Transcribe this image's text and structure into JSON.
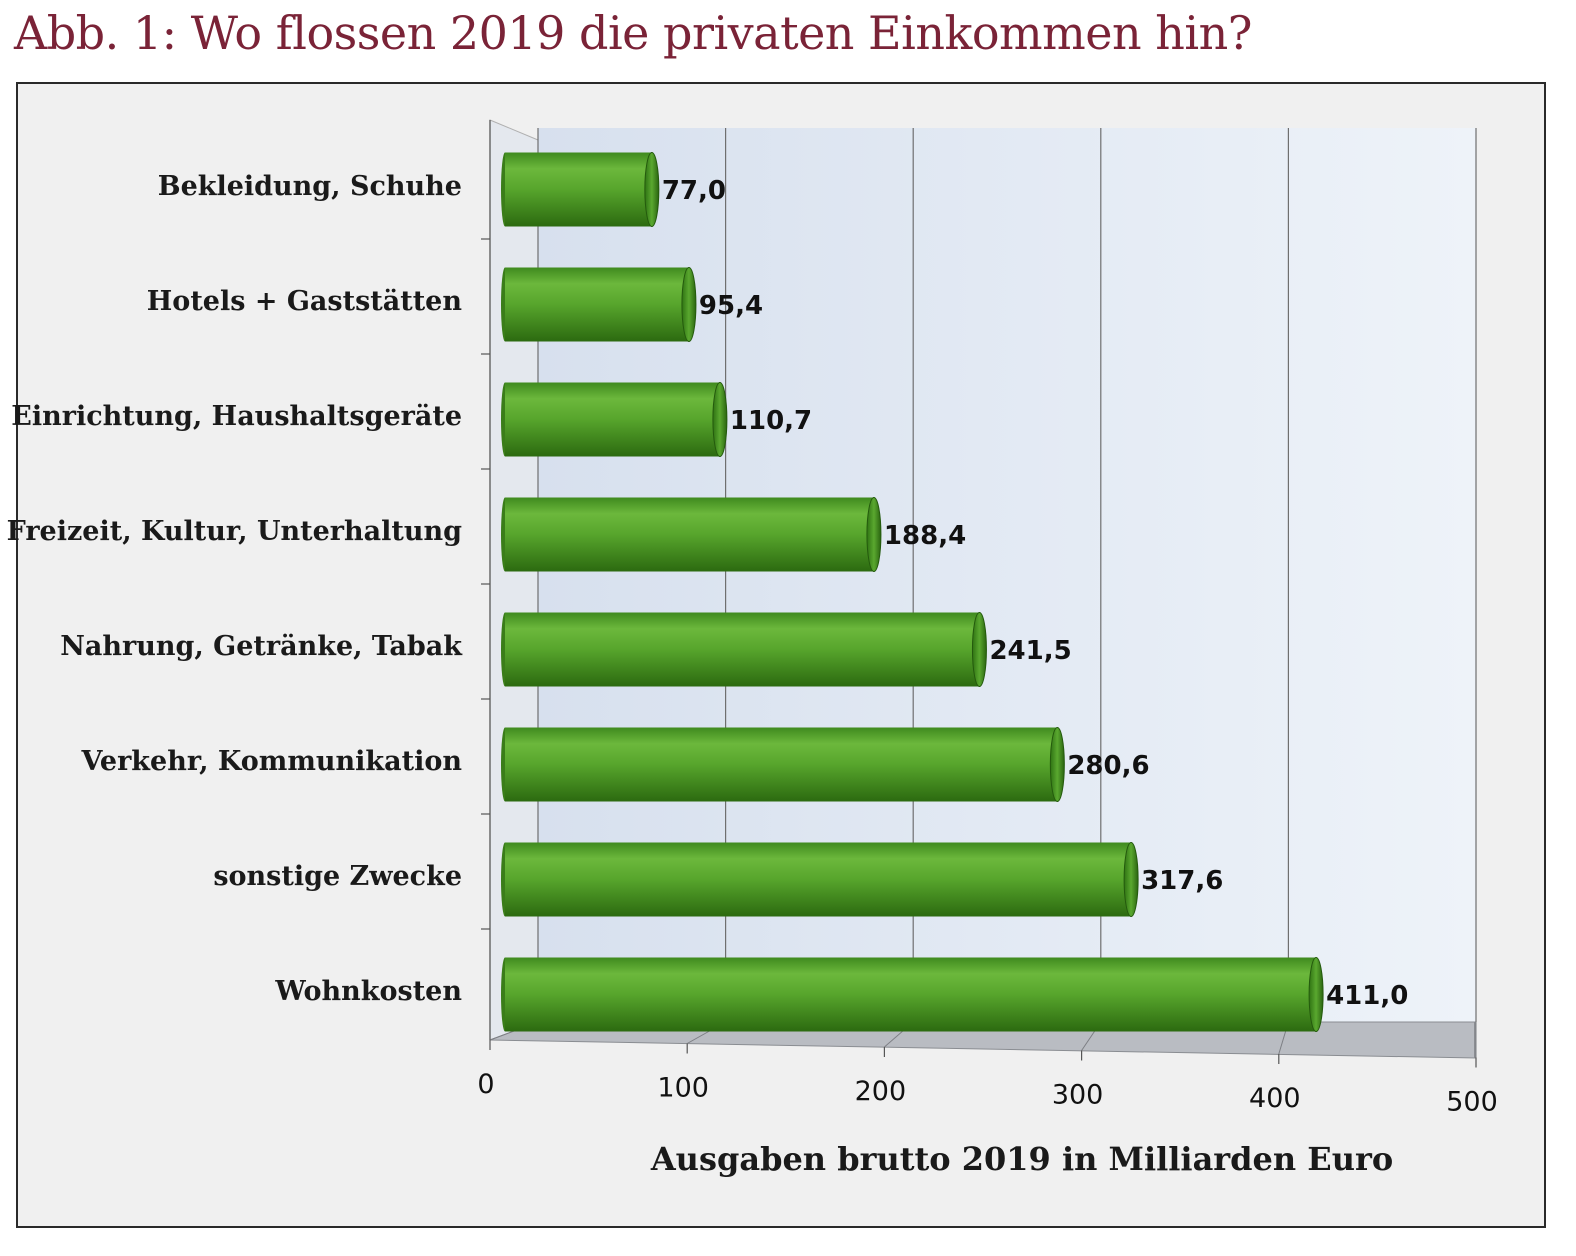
{
  "title": "Abb. 1: Wo flossen 2019 die privaten Einkommen hin?",
  "chart_data": {
    "type": "bar",
    "orientation": "horizontal",
    "categories": [
      "Bekleidung, Schuhe",
      "Hotels + Gaststätten",
      "Einrichtung, Haushaltsgeräte",
      "Freizeit, Kultur, Unterhaltung",
      "Nahrung, Getränke, Tabak",
      "Verkehr, Kommunikation",
      "sonstige Zwecke",
      "Wohnkosten"
    ],
    "values": [
      77.0,
      95.4,
      110.7,
      188.4,
      241.5,
      280.6,
      317.6,
      411.0
    ],
    "value_labels": [
      "77,0",
      "95,4",
      "110,7",
      "188,4",
      "241,5",
      "280,6",
      "317,6",
      "411,0"
    ],
    "xlabel": "Ausgaben brutto 2019 in Milliarden Euro",
    "xlim": [
      0,
      500
    ],
    "xticks": [
      "0",
      "100",
      "200",
      "300",
      "400",
      "500"
    ],
    "bar_color": "#4e9a2a",
    "grid": true
  }
}
